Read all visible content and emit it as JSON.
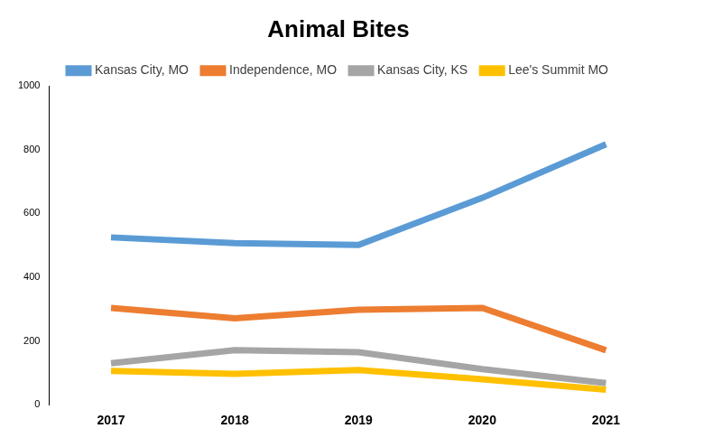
{
  "chart_data": {
    "type": "line",
    "title": "Animal Bites",
    "categories": [
      "2017",
      "2018",
      "2019",
      "2020",
      "2021"
    ],
    "series": [
      {
        "name": "Kansas City, MO",
        "color": "#5b9bd5",
        "values": [
          525,
          507,
          501,
          649,
          817
        ]
      },
      {
        "name": "Independence, MO",
        "color": "#ed7d31",
        "values": [
          304,
          271,
          298,
          304,
          171
        ]
      },
      {
        "name": "Kansas City, KS",
        "color": "#a5a5a5",
        "values": [
          130,
          171,
          165,
          112,
          68
        ]
      },
      {
        "name": "Lee's Summit MO",
        "color": "#ffc000",
        "values": [
          106,
          97,
          109,
          80,
          47
        ]
      }
    ],
    "ylim": [
      0,
      1000
    ],
    "yticks": [
      0,
      200,
      400,
      600,
      800,
      1000
    ],
    "grid": false,
    "legend": "top"
  }
}
